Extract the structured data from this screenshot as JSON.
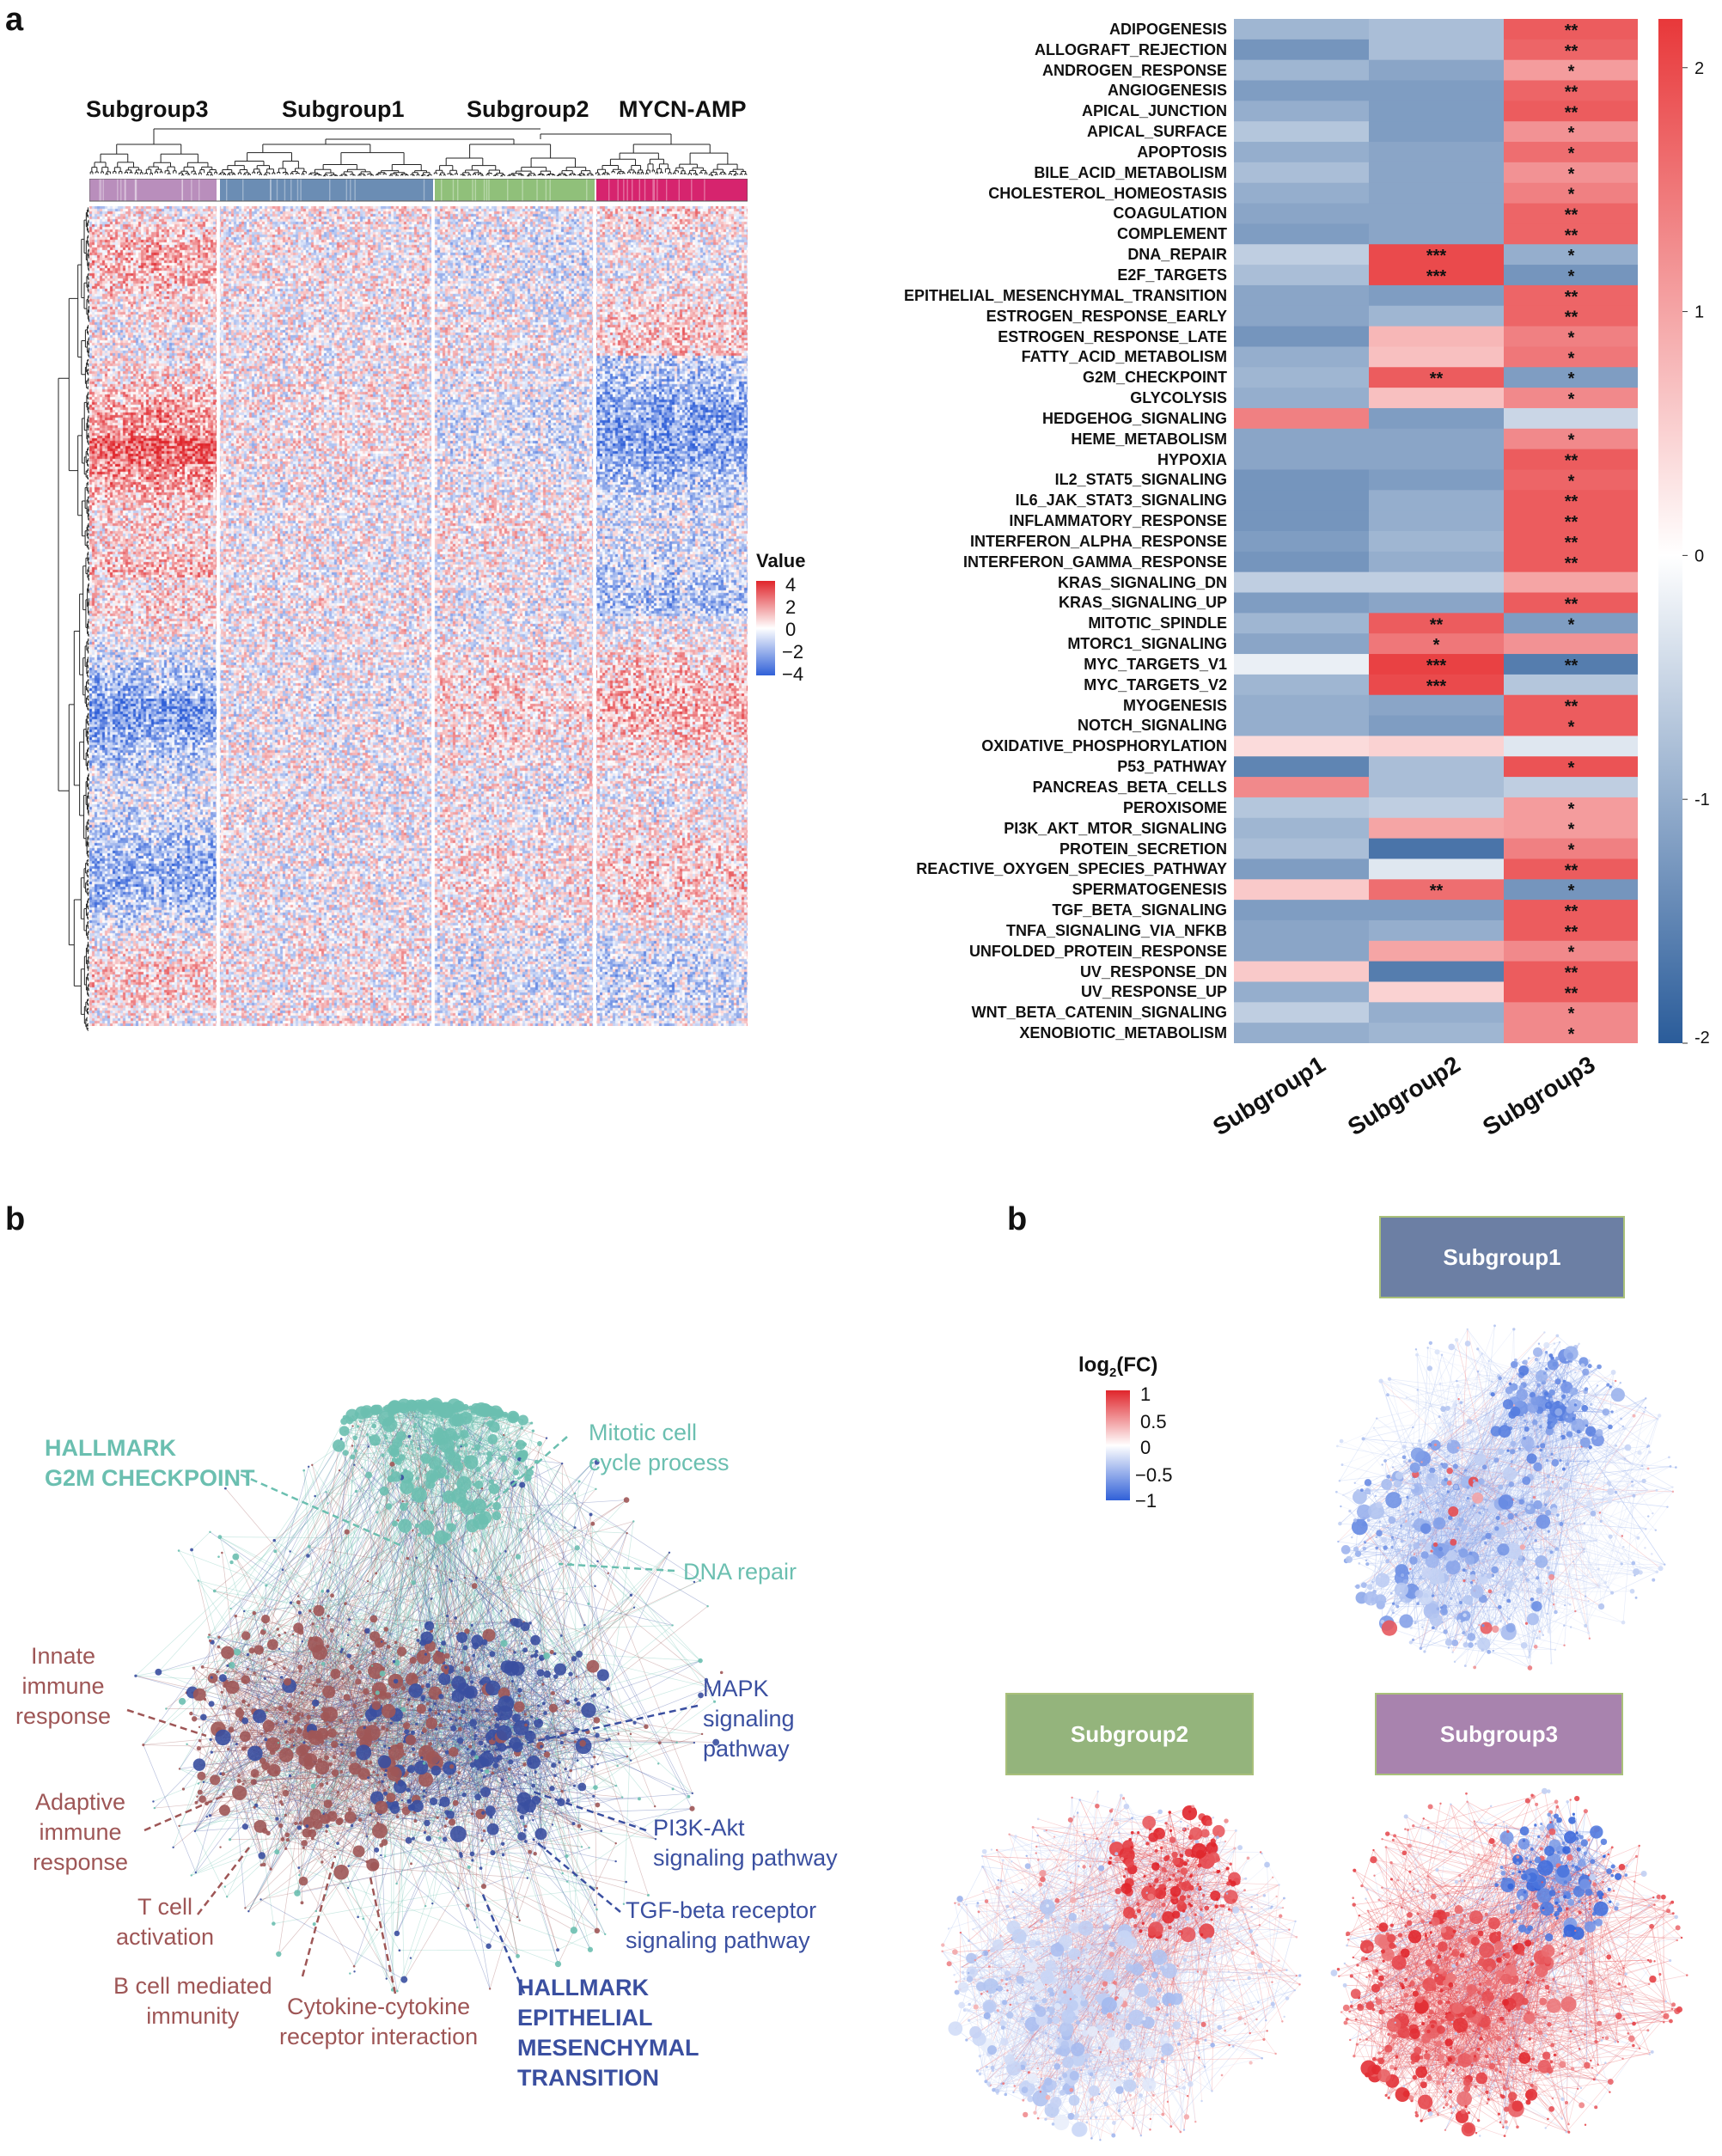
{
  "panels": {
    "a": "a",
    "b_left": "b",
    "b_right": "b"
  },
  "panel_a_left": {
    "group_labels": [
      "Subgroup3",
      "Subgroup1",
      "Subgroup2",
      "MYCN-AMP"
    ],
    "group_colors": [
      "#b98ebc",
      "#6b8db4",
      "#90c07a",
      "#d6246e"
    ],
    "legend_title": "Value",
    "legend_ticks": [
      "4",
      "2",
      "0",
      "−2",
      "−4"
    ],
    "colors": {
      "high": "#e0252b",
      "mid": "#ffffff",
      "low": "#3060d8"
    }
  },
  "chart_data": [
    {
      "type": "heatmap",
      "rows": [
        "ADIPOGENESIS",
        "ALLOGRAFT_REJECTION",
        "ANDROGEN_RESPONSE",
        "ANGIOGENESIS",
        "APICAL_JUNCTION",
        "APICAL_SURFACE",
        "APOPTOSIS",
        "BILE_ACID_METABOLISM",
        "CHOLESTEROL_HOMEOSTASIS",
        "COAGULATION",
        "COMPLEMENT",
        "DNA_REPAIR",
        "E2F_TARGETS",
        "EPITHELIAL_MESENCHYMAL_TRANSITION",
        "ESTROGEN_RESPONSE_EARLY",
        "ESTROGEN_RESPONSE_LATE",
        "FATTY_ACID_METABOLISM",
        "G2M_CHECKPOINT",
        "GLYCOLYSIS",
        "HEDGEHOG_SIGNALING",
        "HEME_METABOLISM",
        "HYPOXIA",
        "IL2_STAT5_SIGNALING",
        "IL6_JAK_STAT3_SIGNALING",
        "INFLAMMATORY_RESPONSE",
        "INTERFERON_ALPHA_RESPONSE",
        "INTERFERON_GAMMA_RESPONSE",
        "KRAS_SIGNALING_DN",
        "KRAS_SIGNALING_UP",
        "MITOTIC_SPINDLE",
        "MTORC1_SIGNALING",
        "MYC_TARGETS_V1",
        "MYC_TARGETS_V2",
        "MYOGENESIS",
        "NOTCH_SIGNALING",
        "OXIDATIVE_PHOSPHORYLATION",
        "P53_PATHWAY",
        "PANCREAS_BETA_CELLS",
        "PEROXISOME",
        "PI3K_AKT_MTOR_SIGNALING",
        "PROTEIN_SECRETION",
        "REACTIVE_OXYGEN_SPECIES_PATHWAY",
        "SPERMATOGENESIS",
        "TGF_BETA_SIGNALING",
        "TNFA_SIGNALING_VIA_NFKB",
        "UNFOLDED_PROTEIN_RESPONSE",
        "UV_RESPONSE_DN",
        "UV_RESPONSE_UP",
        "WNT_BETA_CATENIN_SIGNALING",
        "XENOBIOTIC_METABOLISM"
      ],
      "columns": [
        "Subgroup1",
        "Subgroup2",
        "Subgroup3"
      ],
      "values": [
        [
          -0.9,
          -0.8,
          1.8
        ],
        [
          -1.3,
          -0.8,
          1.7
        ],
        [
          -0.9,
          -1.1,
          1.1
        ],
        [
          -1.2,
          -1.2,
          1.7
        ],
        [
          -1.0,
          -1.2,
          1.8
        ],
        [
          -0.7,
          -1.2,
          1.2
        ],
        [
          -1.0,
          -1.1,
          1.6
        ],
        [
          -0.8,
          -1.1,
          1.2
        ],
        [
          -1.0,
          -1.1,
          1.4
        ],
        [
          -1.1,
          -1.1,
          1.7
        ],
        [
          -1.2,
          -1.1,
          1.7
        ],
        [
          -0.6,
          2.0,
          -1.0
        ],
        [
          -0.8,
          2.0,
          -1.3
        ],
        [
          -1.1,
          -1.2,
          1.7
        ],
        [
          -1.1,
          -0.9,
          1.7
        ],
        [
          -1.3,
          0.8,
          1.4
        ],
        [
          -1.0,
          0.7,
          1.5
        ],
        [
          -0.9,
          1.8,
          -1.2
        ],
        [
          -1.0,
          0.7,
          1.3
        ],
        [
          1.4,
          -1.2,
          -0.5
        ],
        [
          -1.1,
          -1.1,
          1.3
        ],
        [
          -1.1,
          -1.1,
          1.8
        ],
        [
          -1.3,
          -1.2,
          1.7
        ],
        [
          -1.3,
          -1.0,
          1.8
        ],
        [
          -1.3,
          -1.0,
          1.8
        ],
        [
          -1.2,
          -0.9,
          1.8
        ],
        [
          -1.3,
          -1.0,
          1.8
        ],
        [
          -0.6,
          -0.6,
          1.0
        ],
        [
          -1.2,
          -1.1,
          1.8
        ],
        [
          -0.9,
          1.8,
          -1.2
        ],
        [
          -1.1,
          1.5,
          1.2
        ],
        [
          -0.2,
          2.1,
          -1.6
        ],
        [
          -0.9,
          2.0,
          -0.7
        ],
        [
          -1.0,
          -1.1,
          1.8
        ],
        [
          -1.0,
          -1.2,
          1.8
        ],
        [
          0.4,
          0.5,
          -0.3
        ],
        [
          -1.5,
          -0.8,
          1.9
        ],
        [
          1.3,
          -0.8,
          -0.6
        ],
        [
          -0.7,
          -0.6,
          1.1
        ],
        [
          -0.9,
          1.0,
          1.1
        ],
        [
          -0.8,
          -1.7,
          1.4
        ],
        [
          -1.2,
          -0.3,
          1.8
        ],
        [
          0.6,
          1.6,
          -1.3
        ],
        [
          -1.2,
          -1.2,
          1.8
        ],
        [
          -1.1,
          -1.0,
          1.8
        ],
        [
          -1.1,
          1.0,
          1.3
        ],
        [
          0.6,
          -1.6,
          1.8
        ],
        [
          -1.0,
          0.5,
          1.8
        ],
        [
          -0.6,
          -1.0,
          1.3
        ],
        [
          -1.0,
          -0.9,
          1.3
        ]
      ],
      "stars": [
        [
          "",
          "",
          "**"
        ],
        [
          "",
          "",
          "**"
        ],
        [
          "",
          "",
          "*"
        ],
        [
          "",
          "",
          "**"
        ],
        [
          "",
          "",
          "**"
        ],
        [
          "",
          "",
          "*"
        ],
        [
          "",
          "",
          "*"
        ],
        [
          "",
          "",
          "*"
        ],
        [
          "",
          "",
          "*"
        ],
        [
          "",
          "",
          "**"
        ],
        [
          "",
          "",
          "**"
        ],
        [
          "",
          "***",
          "*"
        ],
        [
          "",
          "***",
          "*"
        ],
        [
          "",
          "",
          "**"
        ],
        [
          "",
          "",
          "**"
        ],
        [
          "",
          "",
          "*"
        ],
        [
          "",
          "",
          "*"
        ],
        [
          "",
          "**",
          "*"
        ],
        [
          "",
          "",
          "*"
        ],
        [
          "",
          "",
          ""
        ],
        [
          "",
          "",
          "*"
        ],
        [
          "",
          "",
          "**"
        ],
        [
          "",
          "",
          "*"
        ],
        [
          "",
          "",
          "**"
        ],
        [
          "",
          "",
          "**"
        ],
        [
          "",
          "",
          "**"
        ],
        [
          "",
          "",
          "**"
        ],
        [
          "",
          "",
          ""
        ],
        [
          "",
          "",
          "**"
        ],
        [
          "",
          "**",
          "*"
        ],
        [
          "",
          "*",
          ""
        ],
        [
          "",
          "***",
          "**"
        ],
        [
          "",
          "***",
          ""
        ],
        [
          "",
          "",
          "**"
        ],
        [
          "",
          "",
          "*"
        ],
        [
          "",
          "",
          ""
        ],
        [
          "",
          "",
          "*"
        ],
        [
          "",
          "",
          ""
        ],
        [
          "",
          "",
          "*"
        ],
        [
          "",
          "",
          "*"
        ],
        [
          "",
          "",
          "*"
        ],
        [
          "",
          "",
          "**"
        ],
        [
          "",
          "**",
          "*"
        ],
        [
          "",
          "",
          "**"
        ],
        [
          "",
          "",
          "**"
        ],
        [
          "",
          "",
          "*"
        ],
        [
          "",
          "",
          "**"
        ],
        [
          "",
          "",
          "**"
        ],
        [
          "",
          "",
          "*"
        ],
        [
          "",
          "",
          "*"
        ]
      ],
      "colorbar_ticks": [
        "2",
        "1",
        "0",
        "-1",
        "-2"
      ],
      "color_range": [
        -2,
        2.2
      ],
      "colors": {
        "high": "#e8383a",
        "mid": "#ffffff",
        "low": "#2a5c9a"
      }
    }
  ],
  "network_left": {
    "labels": [
      {
        "text": "HALLMARK\nG2M CHECKPOINT",
        "color": "#6bbfb0"
      },
      {
        "text": "Mitotic cell\ncycle process",
        "color": "#6bbfb0"
      },
      {
        "text": "DNA repair",
        "color": "#6bbfb0"
      },
      {
        "text": "Innate\nimmune\nresponse",
        "color": "#9e5656"
      },
      {
        "text": "Adaptive\nimmune\nresponse",
        "color": "#9e5656"
      },
      {
        "text": "T cell\nactivation",
        "color": "#9e5656"
      },
      {
        "text": "B cell mediated\nimmunity",
        "color": "#9e5656"
      },
      {
        "text": "Cytokine-cytokine\nreceptor interaction",
        "color": "#9e5656"
      },
      {
        "text": "MAPK\nsignaling\npathway",
        "color": "#3a4fa0"
      },
      {
        "text": "PI3K-Akt\nsignaling pathway",
        "color": "#3a4fa0"
      },
      {
        "text": "TGF-beta receptor\nsignaling pathway",
        "color": "#3a4fa0"
      },
      {
        "text": "HALLMARK\nEPITHELIAL\nMESENCHYMAL\nTRANSITION",
        "color": "#3a4fa0"
      }
    ]
  },
  "network_right": {
    "legend_title_main": "log",
    "legend_title_sub": "2",
    "legend_title_rest": "(FC)",
    "legend_ticks": [
      "1",
      "0.5",
      "0",
      "−0.5",
      "−1"
    ],
    "subgroups": [
      {
        "label": "Subgroup1",
        "color": "#6c7fa4"
      },
      {
        "label": "Subgroup2",
        "color": "#94b47c"
      },
      {
        "label": "Subgroup3",
        "color": "#a883ae"
      }
    ]
  }
}
